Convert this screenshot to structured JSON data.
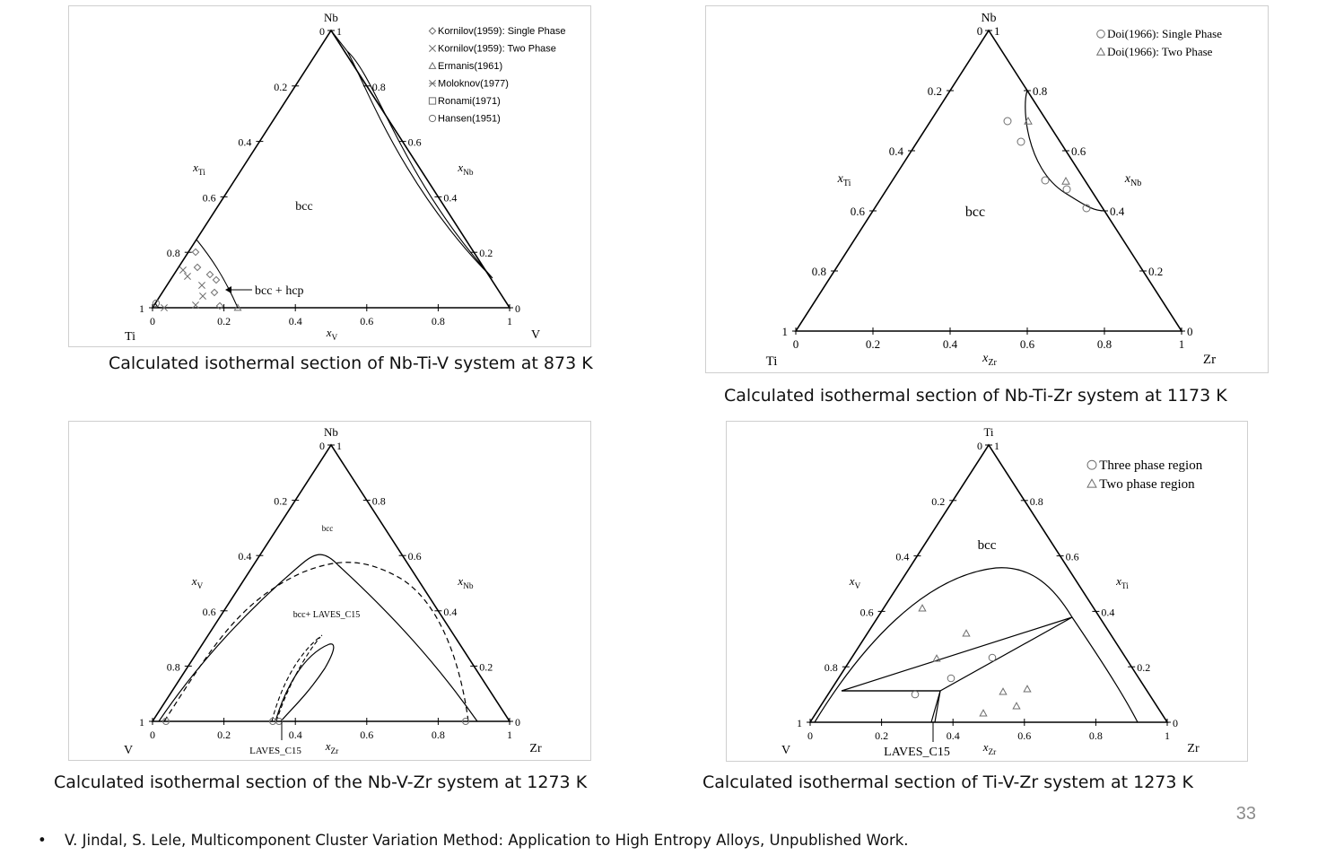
{
  "panels": [
    {
      "caption": "Calculated isothermal section of Nb-Ti-V system at 873 K",
      "apex": {
        "top": "Nb",
        "left": "Ti",
        "right": "V"
      },
      "axis_labels": {
        "left": "x",
        "left_sub": "Ti",
        "right": "x",
        "right_sub": "Nb",
        "bottom": "x",
        "bottom_sub": "V"
      },
      "region_labels": [
        "bcc",
        "bcc + hcp"
      ],
      "legend": [
        {
          "marker": "diamond",
          "text": "Kornilov(1959): Single Phase"
        },
        {
          "marker": "x",
          "text": "Kornilov(1959): Two Phase"
        },
        {
          "marker": "triangle",
          "text": "Ermanis(1961)"
        },
        {
          "marker": "star",
          "text": "Moloknov(1977)"
        },
        {
          "marker": "square",
          "text": "Ronami(1971)"
        },
        {
          "marker": "circle",
          "text": "Hansen(1951)"
        }
      ]
    },
    {
      "caption": "Calculated isothermal section of Nb-Ti-Zr system at 1173 K",
      "apex": {
        "top": "Nb",
        "left": "Ti",
        "right": "Zr"
      },
      "axis_labels": {
        "left": "x",
        "left_sub": "Ti",
        "right": "x",
        "right_sub": "Nb",
        "bottom": "x",
        "bottom_sub": "Zr"
      },
      "region_labels": [
        "bcc"
      ],
      "legend": [
        {
          "marker": "circle",
          "text": "Doi(1966): Single Phase"
        },
        {
          "marker": "triangle",
          "text": "Doi(1966): Two Phase"
        }
      ]
    },
    {
      "caption": "Calculated isothermal section of the Nb-V-Zr system at 1273 K",
      "apex": {
        "top": "Nb",
        "left": "V",
        "right": "Zr"
      },
      "axis_labels": {
        "left": "x",
        "left_sub": "V",
        "right": "x",
        "right_sub": "Nb",
        "bottom": "x",
        "bottom_sub": "Zr"
      },
      "region_labels": [
        "bcc",
        "bcc+ LAVES_C15",
        "LAVES_C15"
      ],
      "legend": []
    },
    {
      "caption": "Calculated isothermal section of Ti-V-Zr system at 1273 K",
      "apex": {
        "top": "Ti",
        "left": "V",
        "right": "Zr"
      },
      "axis_labels": {
        "left": "x",
        "left_sub": "V",
        "right": "x",
        "right_sub": "Ti",
        "bottom": "x",
        "bottom_sub": "Zr"
      },
      "region_labels": [
        "bcc",
        "LAVES_C15"
      ],
      "legend": [
        {
          "marker": "circle",
          "text": "Three phase region"
        },
        {
          "marker": "triangle",
          "text": "Two phase region"
        }
      ]
    }
  ],
  "ticks": {
    "bottom": [
      "0",
      "0.2",
      "0.4",
      "0.6",
      "0.8",
      "1"
    ],
    "left": [
      "0",
      "0.2",
      "0.4",
      "0.6",
      "0.8",
      "1"
    ],
    "right": [
      "1",
      "0.8",
      "0.6",
      "0.4",
      "0.2",
      "0"
    ]
  },
  "page_number": "33",
  "footnote": "V. Jindal, S. Lele, Multicomponent Cluster Variation Method: Application to High Entropy Alloys, Unpublished Work.",
  "bullet": "•"
}
